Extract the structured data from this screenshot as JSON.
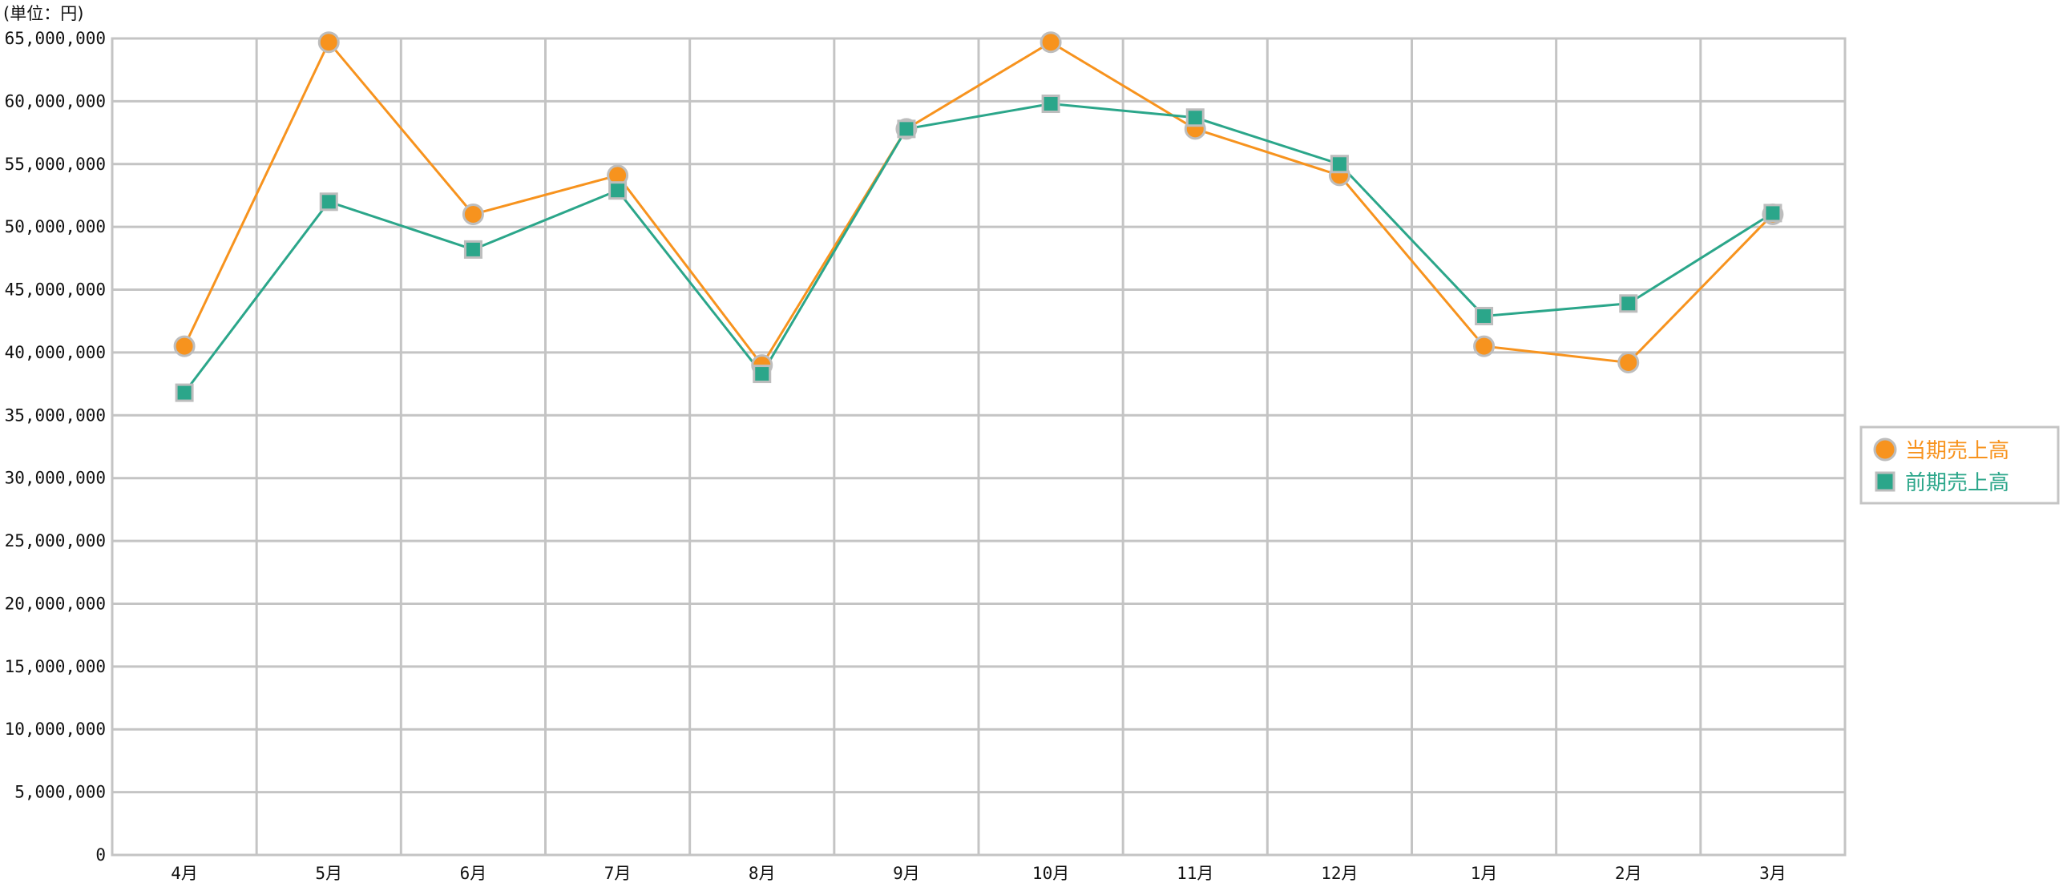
{
  "chart_data": {
    "type": "line",
    "unit_label": "(単位：円)",
    "categories": [
      "4月",
      "5月",
      "6月",
      "7月",
      "8月",
      "9月",
      "10月",
      "11月",
      "12月",
      "1月",
      "2月",
      "3月"
    ],
    "ylim": [
      0,
      65000000
    ],
    "ytick_step": 5000000,
    "ytick_labels": [
      "0",
      "5,000,000",
      "10,000,000",
      "15,000,000",
      "20,000,000",
      "25,000,000",
      "30,000,000",
      "35,000,000",
      "40,000,000",
      "45,000,000",
      "50,000,000",
      "55,000,000",
      "60,000,000",
      "65,000,000"
    ],
    "grid": true,
    "legend_position": "right",
    "series": [
      {
        "name": "当期売上高",
        "color": "#F7931E",
        "marker": "circle",
        "values": [
          40500000,
          64700000,
          51000000,
          54100000,
          39000000,
          57800000,
          64700000,
          57800000,
          54100000,
          40500000,
          39200000,
          51000000
        ]
      },
      {
        "name": "前期売上高",
        "color": "#2BA68A",
        "marker": "square",
        "values": [
          36800000,
          52000000,
          48200000,
          52900000,
          38300000,
          57800000,
          59800000,
          58700000,
          55000000,
          42900000,
          43900000,
          51100000
        ]
      }
    ]
  }
}
